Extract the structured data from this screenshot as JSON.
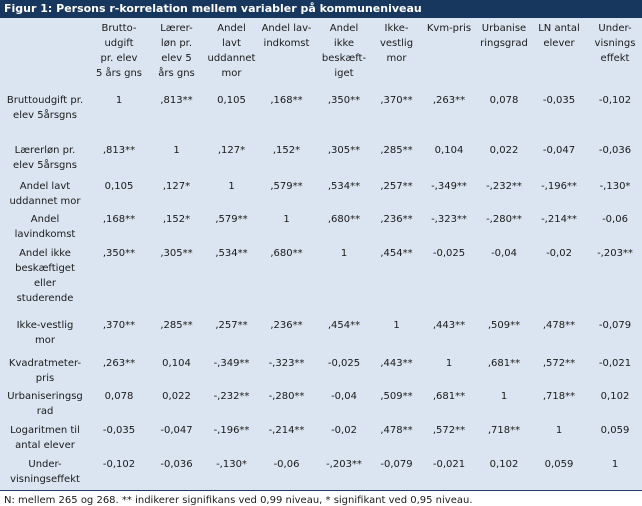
{
  "title": "Figur 1:  Persons r-korrelation mellem variabler på kommuneniveau",
  "table": {
    "headers": [
      [
        "Brutto-",
        "udgift",
        "pr. elev",
        "5 års gns"
      ],
      [
        "Lærer-",
        "løn pr.",
        "elev 5",
        "års gns"
      ],
      [
        "Andel",
        "lavt",
        "uddannet",
        "mor"
      ],
      [
        "Andel lav-",
        "indkomst"
      ],
      [
        "Andel",
        "ikke",
        "beskæft-",
        "iget"
      ],
      [
        "Ikke-",
        "vestlig",
        "mor"
      ],
      [
        "Kvm-pris"
      ],
      [
        "Urbanise",
        "ringsgrad"
      ],
      [
        "LN  antal",
        "elever"
      ],
      [
        "Under-",
        "visnings",
        "effekt"
      ]
    ],
    "row_labels": [
      [
        "Bruttoudgift pr.",
        "elev 5årsgns"
      ],
      [
        "Lærerløn pr.",
        "elev 5årsgns"
      ],
      [
        "Andel lavt",
        "uddannet mor"
      ],
      [
        "Andel",
        "lavindkomst"
      ],
      [
        "Andel ikke",
        "beskæftiget",
        "eller",
        "studerende"
      ],
      [
        "Ikke-vestlig",
        "mor"
      ],
      [
        "Kvadratmeter-",
        "pris"
      ],
      [
        "Urbaniseringsg",
        "rad"
      ],
      [
        "Logaritmen til",
        "antal elever"
      ],
      [
        "Under-",
        "visningseffekt"
      ]
    ],
    "rows": [
      [
        "1",
        ",813**",
        "0,105",
        ",168**",
        ",350**",
        ",370**",
        ",263**",
        "0,078",
        "-0,035",
        "-0,102"
      ],
      [
        ",813**",
        "1",
        ",127*",
        ",152*",
        ",305**",
        ",285**",
        "0,104",
        "0,022",
        "-0,047",
        "-0,036"
      ],
      [
        "0,105",
        ",127*",
        "1",
        ",579**",
        ",534**",
        ",257**",
        "-,349**",
        "-,232**",
        "-,196**",
        "-,130*"
      ],
      [
        ",168**",
        ",152*",
        ",579**",
        "1",
        ",680**",
        ",236**",
        "-,323**",
        "-,280**",
        "-,214**",
        "-0,06"
      ],
      [
        ",350**",
        ",305**",
        ",534**",
        ",680**",
        "1",
        ",454**",
        "-0,025",
        "-0,04",
        "-0,02",
        "-,203**"
      ],
      [
        ",370**",
        ",285**",
        ",257**",
        ",236**",
        ",454**",
        "1",
        ",443**",
        ",509**",
        ",478**",
        "-0,079"
      ],
      [
        ",263**",
        "0,104",
        "-,349**",
        "-,323**",
        "-0,025",
        ",443**",
        "1",
        ",681**",
        ",572**",
        "-0,021"
      ],
      [
        "0,078",
        "0,022",
        "-,232**",
        "-,280**",
        "-0,04",
        ",509**",
        ",681**",
        "1",
        ",718**",
        "0,102"
      ],
      [
        "-0,035",
        "-0,047",
        "-,196**",
        "-,214**",
        "-0,02",
        ",478**",
        ",572**",
        ",718**",
        "1",
        "0,059"
      ],
      [
        "-0,102",
        "-0,036",
        "-,130*",
        "-0,06",
        "-,203**",
        "-0,079",
        "-0,021",
        "0,102",
        "0,059",
        "1"
      ]
    ]
  },
  "note": "N:  mellem 265 og 268. ** indikerer signifikans ved 0,99 niveau, * signifikant ved 0,95 niveau."
}
